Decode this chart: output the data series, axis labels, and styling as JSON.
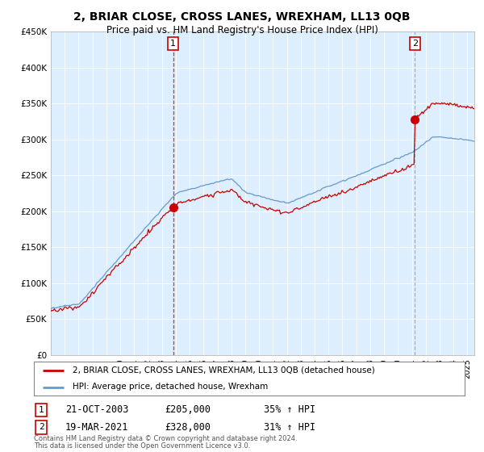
{
  "title": "2, BRIAR CLOSE, CROSS LANES, WREXHAM, LL13 0QB",
  "subtitle": "Price paid vs. HM Land Registry's House Price Index (HPI)",
  "legend_line1": "2, BRIAR CLOSE, CROSS LANES, WREXHAM, LL13 0QB (detached house)",
  "legend_line2": "HPI: Average price, detached house, Wrexham",
  "sale1_date": 2003.81,
  "sale1_price": 205000,
  "sale1_label": "21-OCT-2003",
  "sale1_annotation": "£205,000",
  "sale1_pct": "35% ↑ HPI",
  "sale2_date": 2021.22,
  "sale2_price": 328000,
  "sale2_label": "19-MAR-2021",
  "sale2_annotation": "£328,000",
  "sale2_pct": "31% ↑ HPI",
  "ylim": [
    0,
    450000
  ],
  "yticks": [
    0,
    50000,
    100000,
    150000,
    200000,
    250000,
    300000,
    350000,
    400000,
    450000
  ],
  "footer1": "Contains HM Land Registry data © Crown copyright and database right 2024.",
  "footer2": "This data is licensed under the Open Government Licence v3.0.",
  "red_color": "#cc0000",
  "blue_color": "#6699cc",
  "plot_bg_color": "#ddeeff",
  "bg_color": "#ffffff",
  "grid_color": "#ffffff"
}
